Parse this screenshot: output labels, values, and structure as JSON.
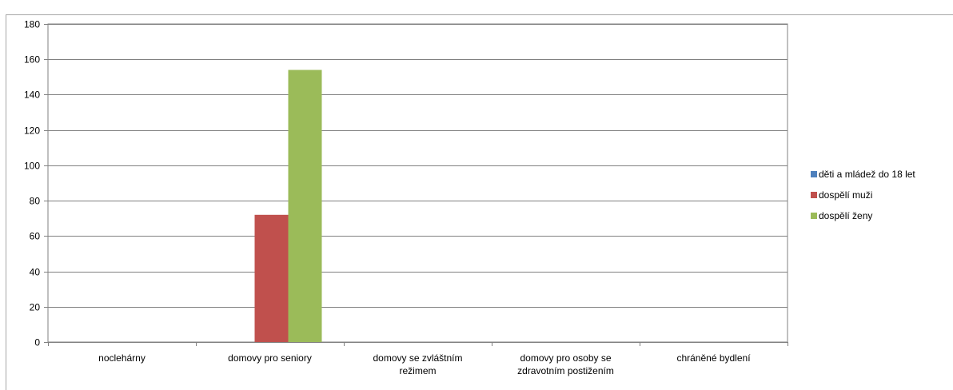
{
  "chart_data": {
    "type": "bar",
    "title": "",
    "xlabel": "",
    "ylabel": "",
    "ylim": [
      0,
      180
    ],
    "yticks": [
      0,
      20,
      40,
      60,
      80,
      100,
      120,
      140,
      160,
      180
    ],
    "grid": true,
    "legend_position": "right",
    "categories": [
      [
        "noclehárny"
      ],
      [
        "domovy pro seniory"
      ],
      [
        "domovy se zvláštním",
        "režimem"
      ],
      [
        "domovy pro osoby se",
        "zdravotním postižením"
      ],
      [
        "chráněné bydlení"
      ]
    ],
    "series": [
      {
        "name": "děti a mládež do 18 let",
        "color": "#4f81bd",
        "values": [
          0,
          0,
          0,
          0,
          0
        ]
      },
      {
        "name": "dospělí muži",
        "color": "#c0504d",
        "values": [
          0,
          72,
          0,
          0,
          0
        ]
      },
      {
        "name": "dospělí ženy",
        "color": "#9bbb59",
        "values": [
          0,
          154,
          0,
          0,
          0
        ]
      }
    ]
  }
}
